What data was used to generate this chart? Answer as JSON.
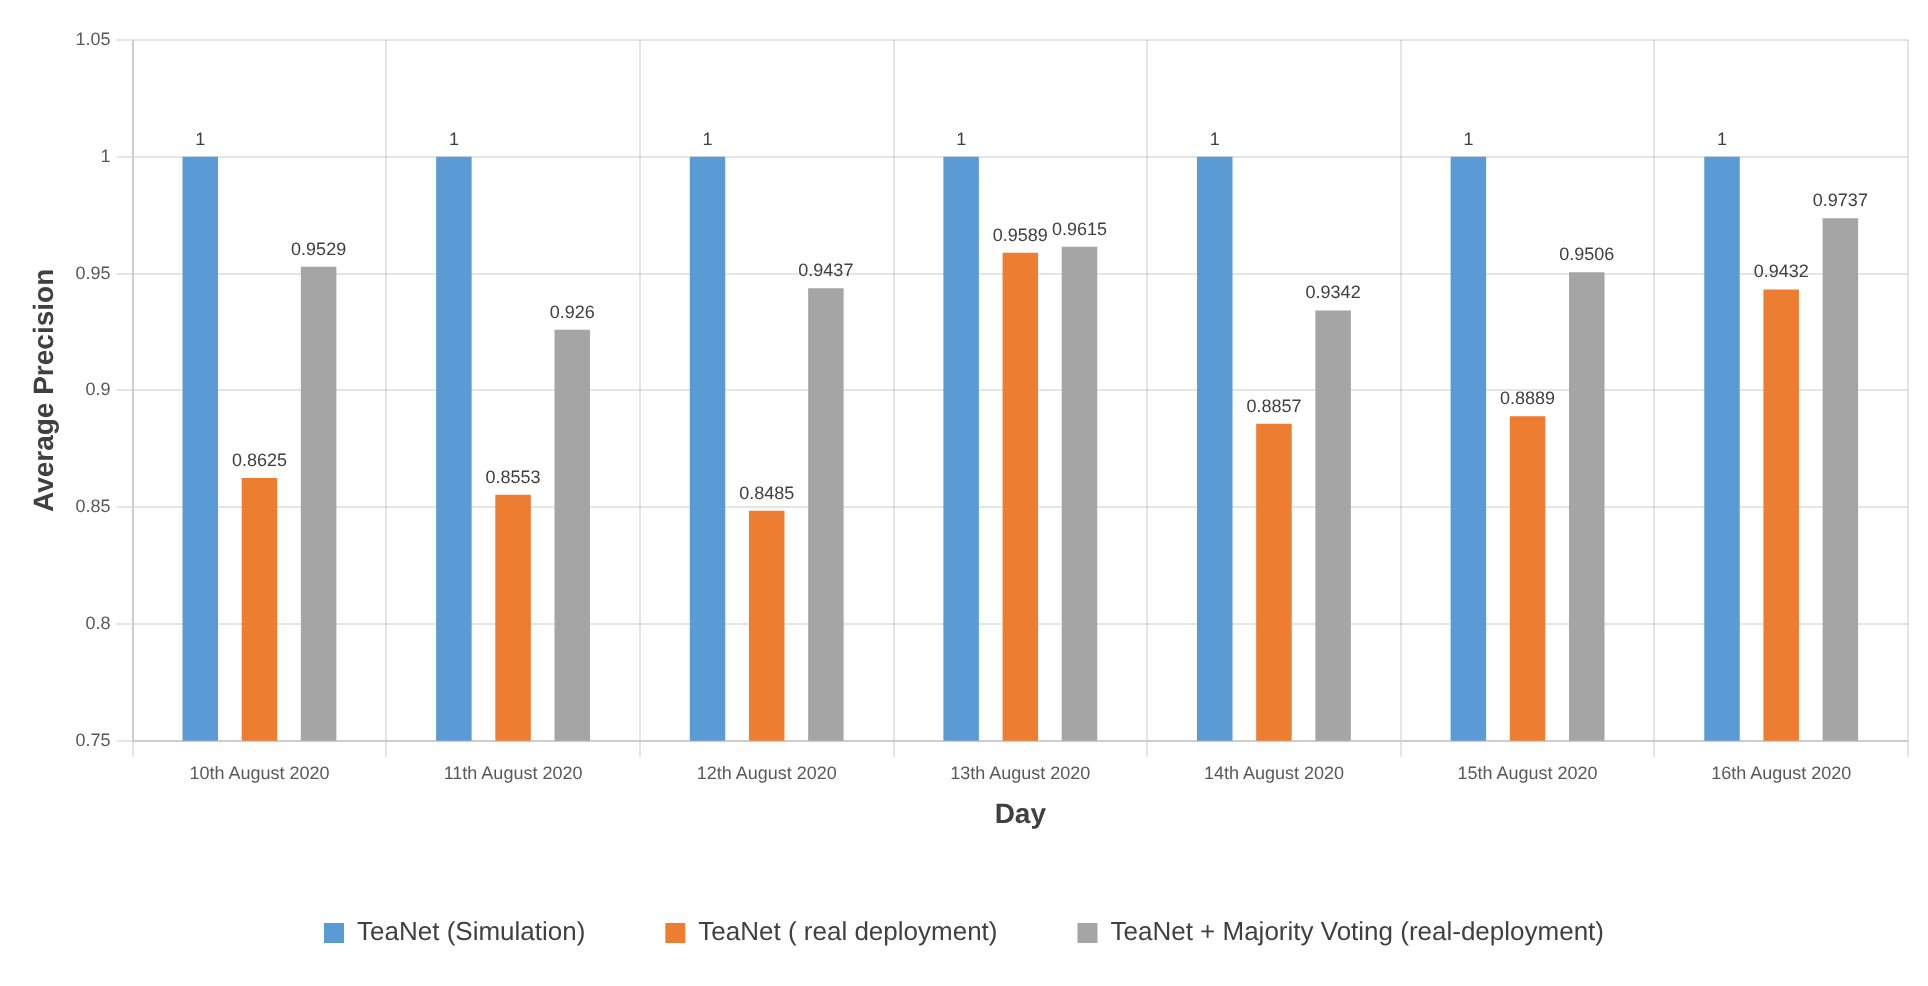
{
  "chart_data": {
    "type": "bar",
    "xlabel": "Day",
    "ylabel": "Average Precision",
    "categories": [
      "10th August 2020",
      "11th August 2020",
      "12th August 2020",
      "13th August 2020",
      "14th August 2020",
      "15th August 2020",
      "16th August 2020"
    ],
    "series": [
      {
        "name": "TeaNet (Simulation)",
        "color": "#5b9bd5",
        "values": [
          1,
          1,
          1,
          1,
          1,
          1,
          1
        ]
      },
      {
        "name": "TeaNet ( real deployment)",
        "color": "#ed7d31",
        "values": [
          0.8625,
          0.8553,
          0.8485,
          0.9589,
          0.8857,
          0.8889,
          0.9432
        ]
      },
      {
        "name": "TeaNet + Majority Voting (real-deployment)",
        "color": "#a5a5a5",
        "values": [
          0.9529,
          0.926,
          0.9437,
          0.9615,
          0.9342,
          0.9506,
          0.9737
        ]
      }
    ],
    "ylim": [
      0.75,
      1.05
    ],
    "yticks": [
      0.75,
      0.8,
      0.85,
      0.9,
      0.95,
      1,
      1.05
    ],
    "grid": true,
    "legend": "bottom",
    "data_labels": true
  }
}
